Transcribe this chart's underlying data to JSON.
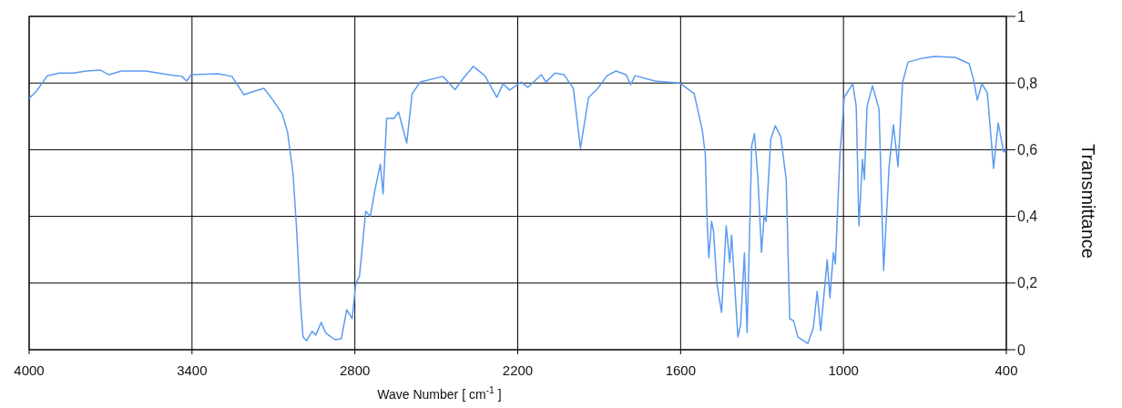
{
  "chart_data": {
    "type": "line",
    "xlabel": "Wave Number [ cm$^{-1}$ ]",
    "ylabel": "Transmittance",
    "xlim": [
      4000,
      400
    ],
    "ylim": [
      0,
      1
    ],
    "xticks": [
      4000,
      3400,
      2800,
      2200,
      1600,
      1000,
      400
    ],
    "yticks": [
      0,
      {
        "value": 0.2,
        "label": "0,2"
      },
      {
        "value": 0.4,
        "label": "0,4"
      },
      {
        "value": 0.6,
        "label": "0,6"
      },
      {
        "value": 0.8,
        "label": "0,8"
      },
      1
    ],
    "grid": true,
    "marker": "none",
    "line_style": "solid",
    "series": [
      {
        "color": "#5b9bf0",
        "x": [
          4000,
          3973,
          3933,
          3889,
          3839,
          3789,
          3739,
          3705,
          3661,
          3571,
          3487,
          3437,
          3420,
          3403,
          3303,
          3253,
          3229,
          3209,
          3169,
          3135,
          3102,
          3068,
          3048,
          3028,
          3015,
          3001,
          2991,
          2978,
          2958,
          2944,
          2924,
          2907,
          2874,
          2850,
          2830,
          2810,
          2797,
          2783,
          2760,
          2743,
          2726,
          2706,
          2696,
          2683,
          2656,
          2639,
          2609,
          2589,
          2559,
          2475,
          2431,
          2398,
          2364,
          2321,
          2277,
          2254,
          2230,
          2187,
          2163,
          2113,
          2096,
          2063,
          2029,
          1995,
          1969,
          1939,
          1905,
          1871,
          1838,
          1801,
          1784,
          1768,
          1694,
          1603,
          1550,
          1520,
          1509,
          1503,
          1496,
          1486,
          1479,
          1466,
          1449,
          1432,
          1419,
          1412,
          1389,
          1379,
          1365,
          1355,
          1338,
          1328,
          1315,
          1302,
          1292,
          1285,
          1268,
          1251,
          1231,
          1211,
          1198,
          1184,
          1168,
          1131,
          1111,
          1097,
          1084,
          1060,
          1050,
          1037,
          1030,
          1013,
          997,
          966,
          953,
          943,
          930,
          923,
          913,
          893,
          869,
          852,
          832,
          816,
          799,
          782,
          762,
          712,
          665,
          588,
          537,
          521,
          507,
          490,
          470,
          447,
          430,
          410,
          400
        ],
        "values": [
          0.754,
          0.776,
          0.822,
          0.83,
          0.83,
          0.836,
          0.839,
          0.825,
          0.836,
          0.836,
          0.825,
          0.82,
          0.806,
          0.825,
          0.828,
          0.82,
          0.79,
          0.765,
          0.776,
          0.784,
          0.749,
          0.708,
          0.653,
          0.53,
          0.366,
          0.148,
          0.038,
          0.027,
          0.055,
          0.044,
          0.082,
          0.05,
          0.03,
          0.033,
          0.12,
          0.093,
          0.197,
          0.221,
          0.415,
          0.4,
          0.48,
          0.557,
          0.467,
          0.694,
          0.694,
          0.713,
          0.62,
          0.768,
          0.803,
          0.82,
          0.78,
          0.817,
          0.85,
          0.822,
          0.757,
          0.798,
          0.779,
          0.803,
          0.787,
          0.825,
          0.803,
          0.83,
          0.825,
          0.784,
          0.604,
          0.757,
          0.784,
          0.822,
          0.836,
          0.825,
          0.795,
          0.822,
          0.806,
          0.8,
          0.768,
          0.658,
          0.585,
          0.4,
          0.276,
          0.385,
          0.358,
          0.197,
          0.112,
          0.372,
          0.262,
          0.344,
          0.038,
          0.074,
          0.29,
          0.052,
          0.612,
          0.648,
          0.511,
          0.292,
          0.402,
          0.385,
          0.631,
          0.672,
          0.639,
          0.511,
          0.093,
          0.087,
          0.038,
          0.019,
          0.066,
          0.175,
          0.057,
          0.27,
          0.156,
          0.292,
          0.257,
          0.585,
          0.757,
          0.798,
          0.73,
          0.372,
          0.571,
          0.511,
          0.73,
          0.792,
          0.721,
          0.238,
          0.549,
          0.675,
          0.549,
          0.803,
          0.863,
          0.874,
          0.88,
          0.877,
          0.858,
          0.811,
          0.749,
          0.798,
          0.77,
          0.544,
          0.68,
          0.593,
          0.6
        ]
      }
    ]
  }
}
